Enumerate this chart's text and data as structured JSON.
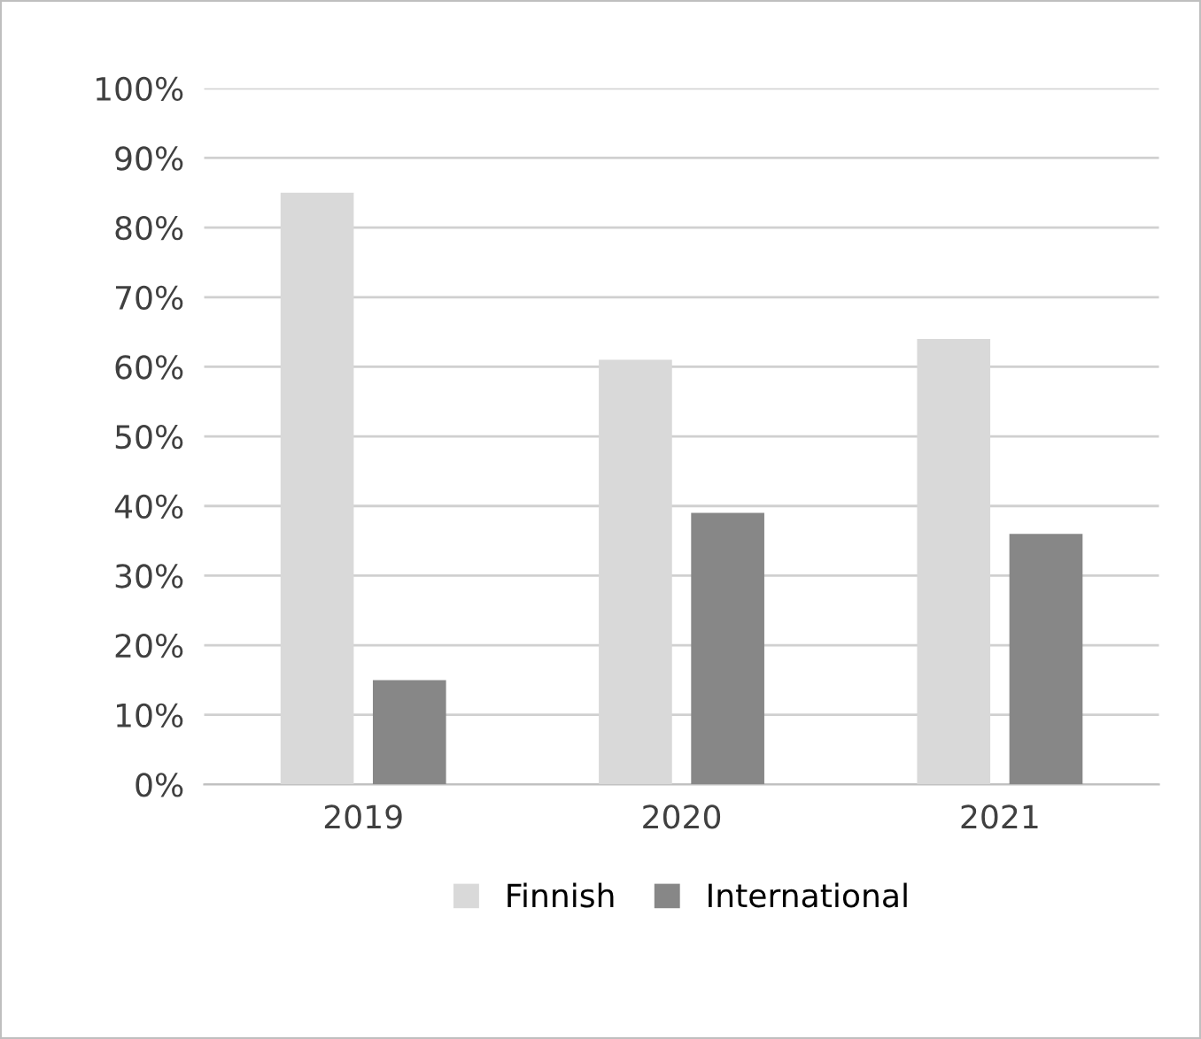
{
  "chart_data": {
    "type": "bar",
    "categories": [
      "2019",
      "2020",
      "2021"
    ],
    "series": [
      {
        "name": "Finnish",
        "color": "#d9d9d9",
        "values": [
          85,
          61,
          64
        ]
      },
      {
        "name": "International",
        "color": "#878787",
        "values": [
          15,
          39,
          36
        ]
      }
    ],
    "ylim": [
      0,
      100
    ],
    "yticks": [
      {
        "value": 0,
        "label": "0%"
      },
      {
        "value": 10,
        "label": "10%"
      },
      {
        "value": 20,
        "label": "20%"
      },
      {
        "value": 30,
        "label": "30%"
      },
      {
        "value": 40,
        "label": "40%"
      },
      {
        "value": 50,
        "label": "50%"
      },
      {
        "value": 60,
        "label": "60%"
      },
      {
        "value": 70,
        "label": "70%"
      },
      {
        "value": 80,
        "label": "80%"
      },
      {
        "value": 90,
        "label": "90%"
      },
      {
        "value": 100,
        "label": "100%"
      }
    ],
    "grid": "y",
    "legend": "bottom"
  }
}
